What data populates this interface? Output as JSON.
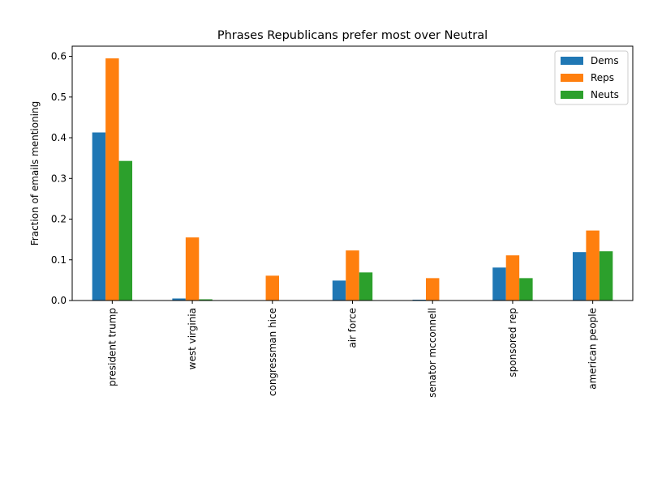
{
  "chart_data": {
    "type": "bar",
    "title": "Phrases Republicans prefer most over Neutral",
    "xlabel": "",
    "ylabel": "Fraction of emails mentioning",
    "ylim": [
      0,
      0.625
    ],
    "yticks": [
      0.0,
      0.1,
      0.2,
      0.3,
      0.4,
      0.5,
      0.6
    ],
    "ytick_labels": [
      "0.0",
      "0.1",
      "0.2",
      "0.3",
      "0.4",
      "0.5",
      "0.6"
    ],
    "categories": [
      "president trump",
      "west virginia",
      "congressman hice",
      "air force",
      "senator mcconnell",
      "sponsored rep",
      "american people"
    ],
    "series": [
      {
        "name": "Dems",
        "color": "#1f77b4",
        "values": [
          0.413,
          0.005,
          0.0,
          0.049,
          0.002,
          0.081,
          0.119
        ]
      },
      {
        "name": "Reps",
        "color": "#ff7f0e",
        "values": [
          0.595,
          0.155,
          0.061,
          0.123,
          0.055,
          0.111,
          0.172
        ]
      },
      {
        "name": "Neuts",
        "color": "#2ca02c",
        "values": [
          0.343,
          0.003,
          0.0,
          0.069,
          0.001,
          0.055,
          0.121
        ]
      }
    ],
    "legend_position": "top-right",
    "grid": false
  }
}
